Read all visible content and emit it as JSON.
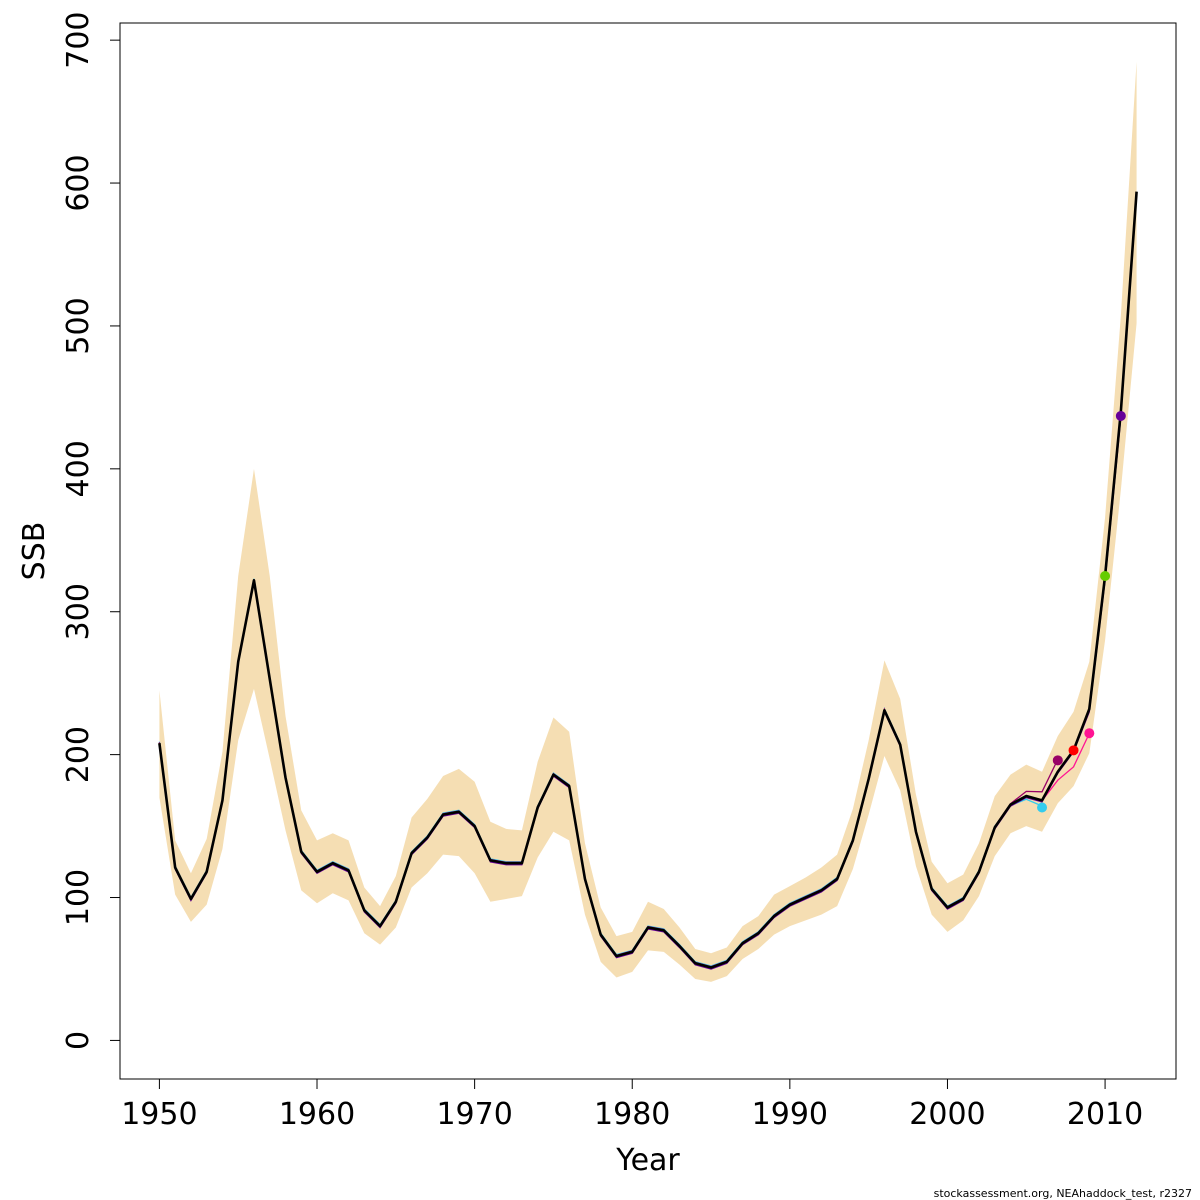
{
  "footer_text": "stockassessment.org, NEAhaddock_test, r2327",
  "chart_data": {
    "type": "line",
    "title": "",
    "xlabel": "Year",
    "ylabel": "SSB",
    "xlim": [
      1947.5,
      2014.5
    ],
    "ylim": [
      -27,
      712
    ],
    "xticks": [
      1950,
      1960,
      1970,
      1980,
      1990,
      2000,
      2010
    ],
    "yticks": [
      0,
      100,
      200,
      300,
      400,
      500,
      600,
      700
    ],
    "grid": false,
    "band_color": "#F5DEB3",
    "years": [
      1950,
      1951,
      1952,
      1953,
      1954,
      1955,
      1956,
      1957,
      1958,
      1959,
      1960,
      1961,
      1962,
      1963,
      1964,
      1965,
      1966,
      1967,
      1968,
      1969,
      1970,
      1971,
      1972,
      1973,
      1974,
      1975,
      1976,
      1977,
      1978,
      1979,
      1980,
      1981,
      1982,
      1983,
      1984,
      1985,
      1986,
      1987,
      1988,
      1989,
      1990,
      1991,
      1992,
      1993,
      1994,
      1995,
      1996,
      1997,
      1998,
      1999,
      2000,
      2001,
      2002,
      2003,
      2004,
      2005,
      2006,
      2007,
      2008,
      2009,
      2010,
      2011,
      2012
    ],
    "ssb": [
      208,
      121,
      99,
      118,
      168,
      265,
      322,
      253,
      184,
      132,
      118,
      124,
      119,
      91,
      80,
      97,
      131,
      142,
      158,
      160,
      150,
      126,
      124,
      124,
      163,
      186,
      178,
      113,
      74,
      59,
      62,
      79,
      77,
      66,
      54,
      51,
      55,
      68,
      75,
      87,
      95,
      100,
      105,
      113,
      140,
      183,
      231,
      207,
      146,
      106,
      93,
      99,
      118,
      149,
      165,
      171,
      168,
      188,
      203,
      232,
      325,
      440,
      594
    ],
    "lower": [
      170,
      102,
      83,
      95,
      134,
      210,
      246,
      197,
      147,
      105,
      96,
      103,
      98,
      75,
      67,
      79,
      107,
      117,
      130,
      129,
      117,
      97,
      99,
      101,
      128,
      146,
      140,
      88,
      55,
      44,
      48,
      63,
      62,
      53,
      43,
      41,
      45,
      57,
      64,
      74,
      80,
      84,
      88,
      94,
      120,
      158,
      199,
      175,
      122,
      88,
      76,
      84,
      101,
      129,
      145,
      150,
      146,
      166,
      178,
      201,
      280,
      385,
      502
    ],
    "upper": [
      245,
      140,
      117,
      141,
      202,
      325,
      400,
      325,
      227,
      161,
      140,
      145,
      140,
      107,
      94,
      115,
      156,
      169,
      185,
      190,
      181,
      153,
      148,
      147,
      195,
      226,
      216,
      138,
      93,
      73,
      76,
      97,
      92,
      79,
      64,
      61,
      65,
      80,
      87,
      102,
      108,
      114,
      121,
      130,
      162,
      210,
      266,
      239,
      172,
      125,
      110,
      116,
      138,
      171,
      186,
      193,
      188,
      213,
      230,
      265,
      366,
      507,
      685
    ]
  },
  "retro_points": [
    {
      "year": 2006,
      "value": 163,
      "color": "#33CCEE"
    },
    {
      "year": 2007,
      "value": 196,
      "color": "#990066"
    },
    {
      "year": 2008,
      "value": 203,
      "color": "#FF0000"
    },
    {
      "year": 2009,
      "value": 215,
      "color": "#FF1493"
    },
    {
      "year": 2010,
      "value": 325,
      "color": "#66CC00"
    },
    {
      "year": 2011,
      "value": 437,
      "color": "#660099"
    }
  ]
}
